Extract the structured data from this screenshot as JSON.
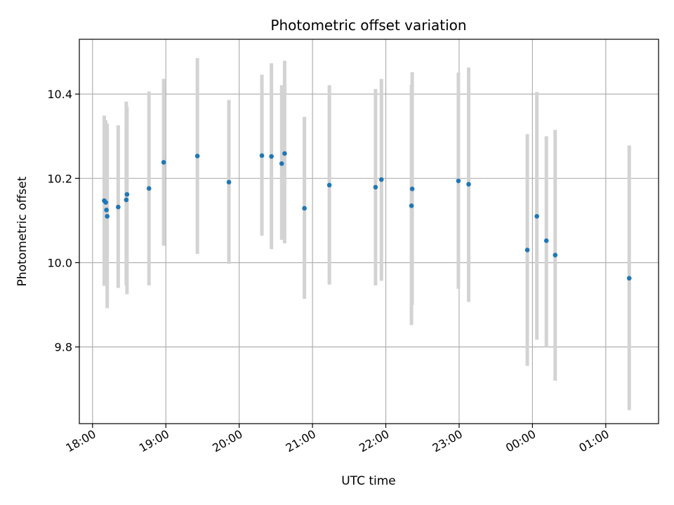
{
  "chart_data": {
    "type": "scatter",
    "title": "Photometric offset variation",
    "xlabel": "UTC time",
    "ylabel": "Photometric offset",
    "x_unit": "hours since 18:00 UTC",
    "xlim": [
      -0.18,
      7.72
    ],
    "ylim": [
      9.618,
      10.53
    ],
    "grid": true,
    "x_ticks": [
      {
        "value": 0,
        "label": "18:00"
      },
      {
        "value": 1,
        "label": "19:00"
      },
      {
        "value": 2,
        "label": "20:00"
      },
      {
        "value": 3,
        "label": "21:00"
      },
      {
        "value": 4,
        "label": "22:00"
      },
      {
        "value": 5,
        "label": "23:00"
      },
      {
        "value": 6,
        "label": "00:00"
      },
      {
        "value": 7,
        "label": "01:00"
      }
    ],
    "y_ticks": [
      {
        "value": 9.8,
        "label": "9.8"
      },
      {
        "value": 10.0,
        "label": "10.0"
      },
      {
        "value": 10.2,
        "label": "10.2"
      },
      {
        "value": 10.4,
        "label": "10.4"
      }
    ],
    "marker_color": "#1f77b4",
    "errorbar_color": "#d3d3d3",
    "points": [
      {
        "x": 0.16,
        "y": 10.147,
        "low": 9.945,
        "high": 10.349
      },
      {
        "x": 0.18,
        "y": 10.143,
        "low": 9.96,
        "high": 10.338
      },
      {
        "x": 0.19,
        "y": 10.125,
        "low": 9.955,
        "high": 10.31
      },
      {
        "x": 0.2,
        "y": 10.11,
        "low": 9.892,
        "high": 10.33
      },
      {
        "x": 0.35,
        "y": 10.132,
        "low": 9.94,
        "high": 10.326
      },
      {
        "x": 0.46,
        "y": 10.149,
        "low": 9.946,
        "high": 10.382
      },
      {
        "x": 0.47,
        "y": 10.162,
        "low": 9.925,
        "high": 10.37
      },
      {
        "x": 0.77,
        "y": 10.176,
        "low": 9.946,
        "high": 10.406
      },
      {
        "x": 0.97,
        "y": 10.238,
        "low": 10.04,
        "high": 10.436
      },
      {
        "x": 1.43,
        "y": 10.253,
        "low": 10.021,
        "high": 10.485
      },
      {
        "x": 1.86,
        "y": 10.191,
        "low": 9.997,
        "high": 10.386
      },
      {
        "x": 2.31,
        "y": 10.254,
        "low": 10.064,
        "high": 10.446
      },
      {
        "x": 2.44,
        "y": 10.252,
        "low": 10.032,
        "high": 10.473
      },
      {
        "x": 2.58,
        "y": 10.235,
        "low": 10.054,
        "high": 10.421
      },
      {
        "x": 2.62,
        "y": 10.259,
        "low": 10.046,
        "high": 10.479
      },
      {
        "x": 2.89,
        "y": 10.129,
        "low": 9.914,
        "high": 10.346
      },
      {
        "x": 3.23,
        "y": 10.184,
        "low": 9.948,
        "high": 10.421
      },
      {
        "x": 3.86,
        "y": 10.179,
        "low": 9.946,
        "high": 10.412
      },
      {
        "x": 3.94,
        "y": 10.197,
        "low": 9.957,
        "high": 10.436
      },
      {
        "x": 4.35,
        "y": 10.135,
        "low": 9.852,
        "high": 10.422
      },
      {
        "x": 4.36,
        "y": 10.175,
        "low": 9.9,
        "high": 10.452
      },
      {
        "x": 4.99,
        "y": 10.194,
        "low": 9.938,
        "high": 10.451
      },
      {
        "x": 5.13,
        "y": 10.186,
        "low": 9.907,
        "high": 10.463
      },
      {
        "x": 5.93,
        "y": 10.03,
        "low": 9.755,
        "high": 10.305
      },
      {
        "x": 6.06,
        "y": 10.11,
        "low": 9.817,
        "high": 10.405
      },
      {
        "x": 6.19,
        "y": 10.052,
        "low": 9.8,
        "high": 10.3
      },
      {
        "x": 6.31,
        "y": 10.018,
        "low": 9.72,
        "high": 10.315
      },
      {
        "x": 7.32,
        "y": 9.963,
        "low": 9.65,
        "high": 10.278
      }
    ]
  }
}
